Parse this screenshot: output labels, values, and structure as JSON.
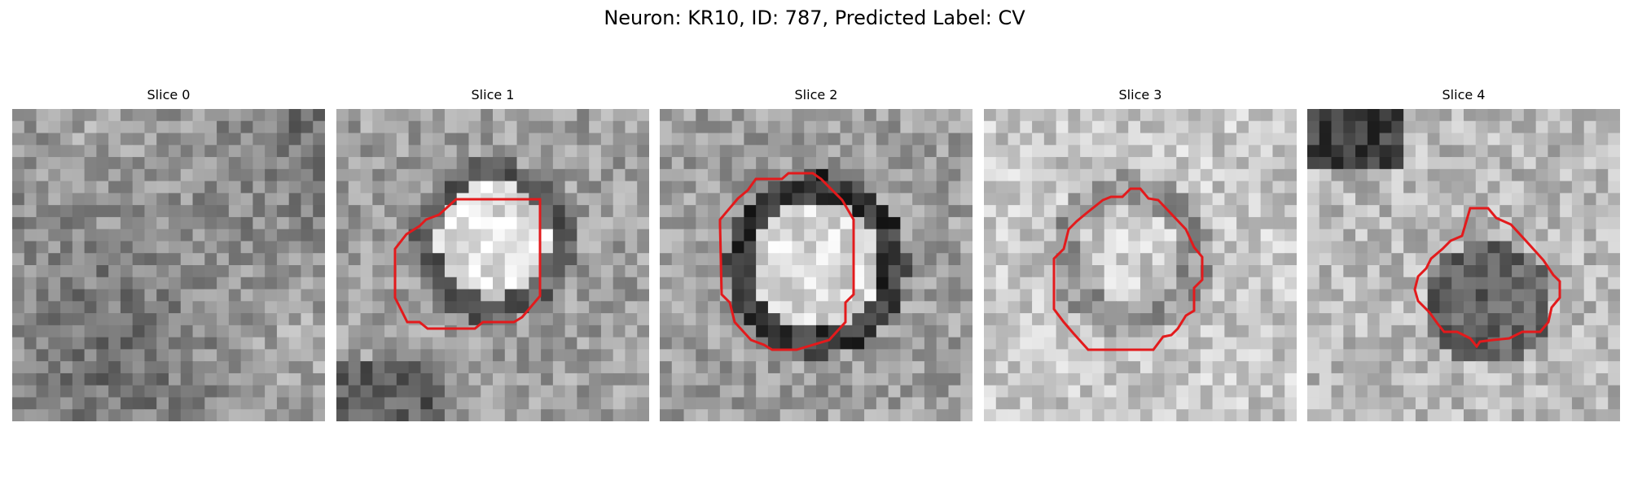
{
  "figure": {
    "title": "Neuron: KR10, ID: 787, Predicted Label: CV",
    "contour_color": "#e31a1c"
  },
  "panels": [
    {
      "title": "Slice 0",
      "has_contour": false,
      "grid_size": 26
    },
    {
      "title": "Slice 1",
      "has_contour": true,
      "grid_size": 26
    },
    {
      "title": "Slice 2",
      "has_contour": true,
      "grid_size": 26
    },
    {
      "title": "Slice 3",
      "has_contour": true,
      "grid_size": 26
    },
    {
      "title": "Slice 4",
      "has_contour": true,
      "grid_size": 26
    }
  ]
}
